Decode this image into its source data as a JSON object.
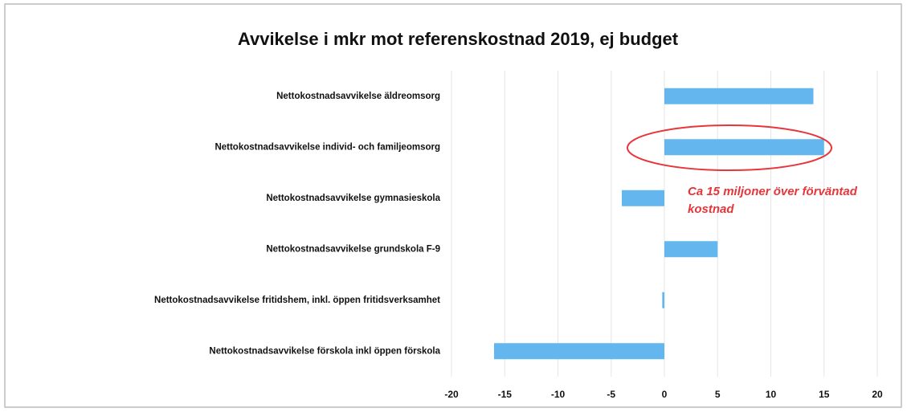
{
  "chart_data": {
    "type": "barh",
    "title": "Avvikelse i mkr mot referenskostnad 2019, ej budget",
    "categories": [
      "Nettokostnadsavvikelse äldreomsorg",
      "Nettokostnadsavvikelse individ- och familjeomsorg",
      "Nettokostnadsavvikelse gymnasieskola",
      "Nettokostnadsavvikelse grundskola F-9",
      "Nettokostnadsavvikelse fritidshem, inkl. öppen fritidsverksamhet",
      "Nettokostnadsavvikelse förskola inkl öppen förskola"
    ],
    "values": [
      14,
      15,
      -4,
      5,
      -0.2,
      -16
    ],
    "color": "#63b7ee",
    "xlim": [
      -20,
      20
    ],
    "xticks": [
      -20,
      -15,
      -10,
      -5,
      0,
      5,
      10,
      15,
      20
    ],
    "grid": true,
    "annotation": "Ca 15 miljoner över förväntad kostnad",
    "annotation_color": "#e8353a"
  }
}
